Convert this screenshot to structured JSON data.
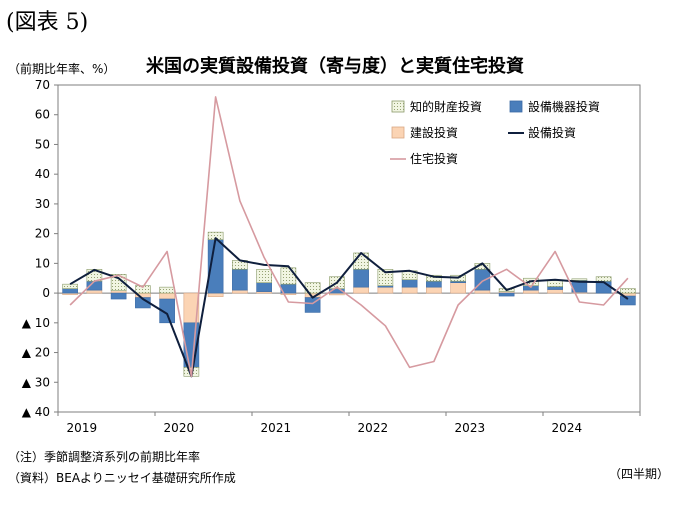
{
  "figure_label": "(図表 5)",
  "unit_label": "（前期比年率、%）",
  "notes": {
    "note1": "（注）季節調整済系列の前期比年率",
    "note2": "（資料）BEAよりニッセイ基礎研究所作成",
    "period": "（四半期）"
  },
  "colors": {
    "intellectual": "#f1f5e2",
    "equipment": "#4a7ebb",
    "structures": "#fbd4b4",
    "business_investment": "#0f1f3d",
    "residential": "#d69aa0"
  },
  "chart_data": {
    "type": "bar",
    "stacked": true,
    "title": "米国の実質設備投資（寄与度）と実質住宅投資",
    "ylim": [
      -40,
      70
    ],
    "yticks": [
      {
        "value": 70,
        "label": "70"
      },
      {
        "value": 60,
        "label": "60"
      },
      {
        "value": 50,
        "label": "50"
      },
      {
        "value": 40,
        "label": "40"
      },
      {
        "value": 30,
        "label": "30"
      },
      {
        "value": 20,
        "label": "20"
      },
      {
        "value": 10,
        "label": "10"
      },
      {
        "value": 0,
        "label": "0"
      },
      {
        "value": -10,
        "label": "▲ 10"
      },
      {
        "value": -20,
        "label": "▲ 20"
      },
      {
        "value": -30,
        "label": "▲ 30"
      },
      {
        "value": -40,
        "label": "▲ 40"
      }
    ],
    "year_labels": [
      "2019",
      "2020",
      "2021",
      "2022",
      "2023",
      "2024"
    ],
    "quarters_per_year": 4,
    "legend": {
      "position": "top-right",
      "items": [
        {
          "key": "intellectual",
          "label": "知的財産投資",
          "kind": "box"
        },
        {
          "key": "equipment",
          "label": "設備機器投資",
          "kind": "box"
        },
        {
          "key": "structures",
          "label": "建設投資",
          "kind": "box"
        },
        {
          "key": "business_investment",
          "label": "設備投資",
          "kind": "line"
        },
        {
          "key": "residential",
          "label": "住宅投資",
          "kind": "line"
        }
      ]
    },
    "bar_series": [
      {
        "key": "structures",
        "name": "建設投資",
        "values": [
          -0.5,
          1.0,
          0.8,
          -1.5,
          -2.0,
          -10.0,
          -1.2,
          1.0,
          0.5,
          -0.5,
          -1.5,
          -0.6,
          2.0,
          2.0,
          2.0,
          2.0,
          3.5,
          1.0,
          0.5,
          1.0,
          1.2,
          0.3,
          0,
          -1.0
        ]
      },
      {
        "key": "equipment",
        "name": "設備機器投資",
        "values": [
          1.5,
          3.0,
          -2.0,
          -3.5,
          -8.0,
          -15.0,
          18.0,
          7.0,
          3.0,
          3.0,
          -5.0,
          1.5,
          6.0,
          0.5,
          2.5,
          2.0,
          0.5,
          7.0,
          -1.0,
          1.5,
          1.0,
          4.0,
          4.0,
          -3.0
        ]
      },
      {
        "key": "intellectual",
        "name": "知的財産投資",
        "values": [
          1.5,
          4.0,
          5.5,
          2.5,
          2.0,
          -3.0,
          2.5,
          3.0,
          4.5,
          5.5,
          3.5,
          4.0,
          5.5,
          5.5,
          3.0,
          2.0,
          2.0,
          2.0,
          1.0,
          2.5,
          2.0,
          0.5,
          1.5,
          1.5
        ]
      }
    ],
    "line_series": [
      {
        "key": "business_investment",
        "name": "設備投資",
        "values": [
          3.0,
          7.8,
          5.0,
          -2.0,
          -7.0,
          -28.0,
          18.5,
          11.0,
          9.5,
          9.0,
          -1.5,
          3.5,
          13.5,
          7.0,
          7.5,
          5.5,
          5.2,
          10.0,
          1.0,
          4.0,
          4.5,
          3.8,
          3.7,
          -2.0
        ]
      },
      {
        "key": "residential",
        "name": "住宅投資",
        "values": [
          -4.0,
          4.0,
          6.0,
          2.0,
          14.0,
          -28.0,
          66.0,
          31.0,
          12.0,
          -3.0,
          -3.5,
          2.0,
          -4.0,
          -11.0,
          -25.0,
          -23.0,
          -4.0,
          4.0,
          8.0,
          2.0,
          14.0,
          -3.0,
          -4.0,
          5.0
        ]
      }
    ]
  }
}
